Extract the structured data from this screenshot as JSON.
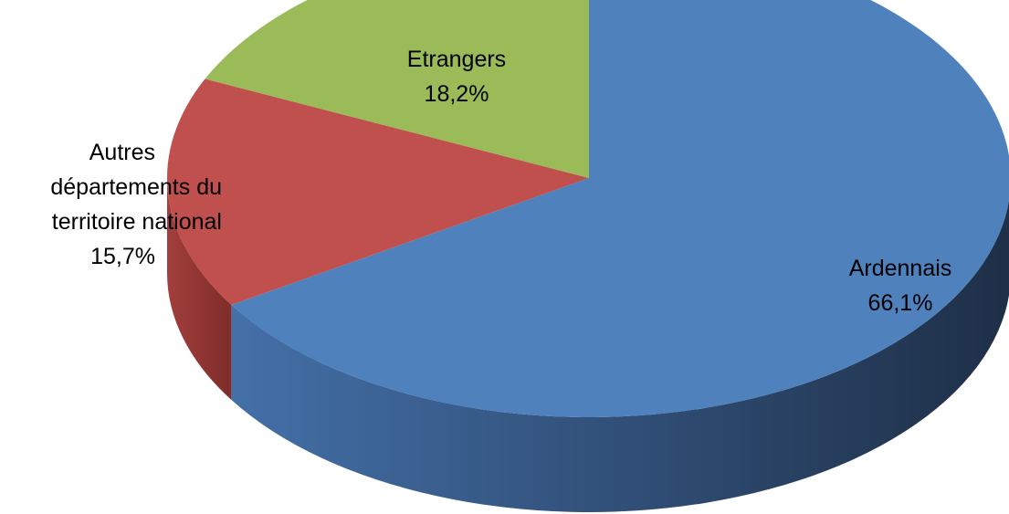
{
  "chart_data": {
    "type": "pie",
    "title": "",
    "slices": [
      {
        "name": "Ardennais",
        "value": 66.1,
        "label": "66,1%",
        "color": "#4F81BD",
        "side_color": "#2E4A6E"
      },
      {
        "name": "Autres départements du territoire national",
        "value": 15.7,
        "label": "15,7%",
        "color": "#C0504D",
        "side_color": "#8B3431"
      },
      {
        "name": "Etrangers",
        "value": 18.2,
        "label": "18,2%",
        "color": "#9BBB59",
        "side_color": "#6E8A3A"
      }
    ]
  },
  "labels": {
    "ardennais": {
      "lines": [
        "Ardennais",
        "66,1%"
      ]
    },
    "autres": {
      "lines": [
        "Autres",
        "départements du",
        "territoire national",
        "15,7%"
      ]
    },
    "etrangers": {
      "lines": [
        "Etrangers",
        "18,2%"
      ]
    }
  }
}
